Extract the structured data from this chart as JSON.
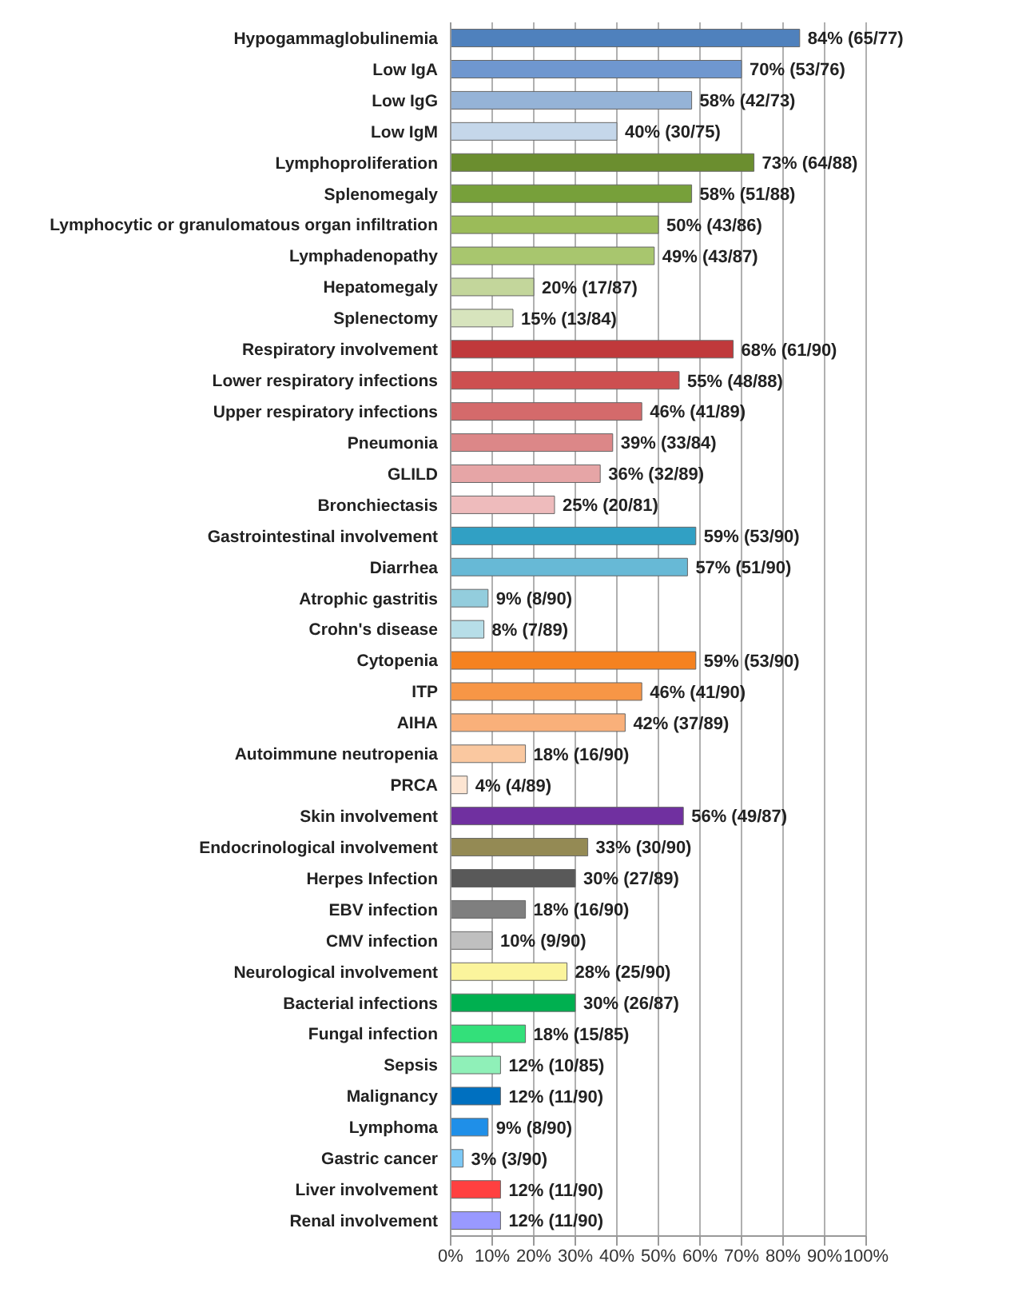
{
  "chart_data": {
    "type": "bar",
    "orientation": "horizontal",
    "grid": "x",
    "legend": false,
    "categories": [
      "Hypogammaglobulinemia",
      "Low IgA",
      "Low IgG",
      "Low IgM",
      "Lymphoproliferation",
      "Splenomegaly",
      "Lymphocytic or granulomatous organ infiltration",
      "Lymphadenopathy",
      "Hepatomegaly",
      "Splenectomy",
      "Respiratory involvement",
      "Lower respiratory infections",
      "Upper respiratory infections",
      "Pneumonia",
      "GLILD",
      "Bronchiectasis",
      "Gastrointestinal involvement",
      "Diarrhea",
      "Atrophic gastritis",
      "Crohn's disease",
      "Cytopenia",
      "ITP",
      "AIHA",
      "Autoimmune neutropenia",
      "PRCA",
      "Skin involvement",
      "Endocrinological involvement",
      "Herpes Infection",
      "EBV infection",
      "CMV infection",
      "Neurological involvement",
      "Bacterial infections",
      "Fungal infection",
      "Sepsis",
      "Malignancy",
      "Lymphoma",
      "Gastric cancer",
      "Liver involvement",
      "Renal involvement"
    ],
    "values": [
      84,
      70,
      58,
      40,
      73,
      58,
      50,
      49,
      20,
      15,
      68,
      55,
      46,
      39,
      36,
      25,
      59,
      57,
      9,
      8,
      59,
      46,
      42,
      18,
      4,
      56,
      33,
      30,
      18,
      10,
      28,
      30,
      18,
      12,
      12,
      9,
      3,
      12,
      12
    ],
    "value_labels": [
      "84% (65/77)",
      "70% (53/76)",
      "58% (42/73)",
      "40% (30/75)",
      "73% (64/88)",
      "58% (51/88)",
      "50% (43/86)",
      "49% (43/87)",
      "20% (17/87)",
      "15% (13/84)",
      "68% (61/90)",
      "55% (48/88)",
      "46% (41/89)",
      "39% (33/84)",
      "36% (32/89)",
      "25% (20/81)",
      "59% (53/90)",
      "57% (51/90)",
      "9% (8/90)",
      "8% (7/89)",
      "59% (53/90)",
      "46% (41/90)",
      "42% (37/89)",
      "18% (16/90)",
      "4% (4/89)",
      "56% (49/87)",
      "33% (30/90)",
      "30% (27/89)",
      "18% (16/90)",
      "10% (9/90)",
      "28% (25/90)",
      "30% (26/87)",
      "18% (15/85)",
      "12% (10/85)",
      "12% (11/90)",
      "9% (8/90)",
      "3% (3/90)",
      "12% (11/90)",
      "12% (11/90)"
    ],
    "colors": [
      "#4f81bd",
      "#6f97cf",
      "#95b3d7",
      "#c5d7ea",
      "#6b8e2f",
      "#77a03a",
      "#9bbb59",
      "#a8c66e",
      "#c3d69b",
      "#d7e4bd",
      "#c0393b",
      "#cd4f50",
      "#d46a6b",
      "#dc8788",
      "#e6a5a6",
      "#eebbbc",
      "#31a0c4",
      "#67b9d6",
      "#93cddd",
      "#b7dee8",
      "#f58220",
      "#f79646",
      "#f9b07a",
      "#fac8a0",
      "#fde5d2",
      "#7030a0",
      "#948a54",
      "#595959",
      "#7f7f7f",
      "#bfbfbf",
      "#fbf49c",
      "#00b050",
      "#33e07a",
      "#8ff0b8",
      "#0070c0",
      "#1f8fe8",
      "#7cc8f5",
      "#ff4040",
      "#9999ff"
    ],
    "xlim": [
      0,
      100
    ],
    "xticks": [
      {
        "value": 0,
        "label": "0%"
      },
      {
        "value": 10,
        "label": "10%"
      },
      {
        "value": 20,
        "label": "20%"
      },
      {
        "value": 30,
        "label": "30%"
      },
      {
        "value": 40,
        "label": "40%"
      },
      {
        "value": 50,
        "label": "50%"
      },
      {
        "value": 60,
        "label": "60%"
      },
      {
        "value": 70,
        "label": "70%"
      },
      {
        "value": 80,
        "label": "80%"
      },
      {
        "value": 90,
        "label": "90%"
      },
      {
        "value": 100,
        "label": "100%"
      }
    ]
  }
}
